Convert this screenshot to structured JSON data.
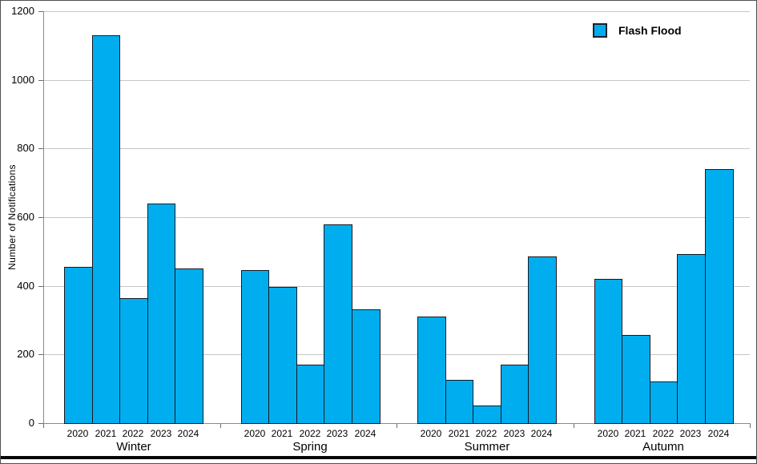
{
  "chart_data": {
    "type": "bar",
    "title": "",
    "xlabel": "",
    "ylabel": "Number of Notifications",
    "ylim": [
      0,
      1200
    ],
    "y_tick_interval": 200,
    "y_ticks": [
      0,
      200,
      400,
      600,
      800,
      1000,
      1200
    ],
    "grid": true,
    "legend_position": "top-right",
    "bar_fill_color": "#00AEEF",
    "bar_border_color": "#191921",
    "series": [
      {
        "name": "Flash Flood",
        "color": "#00AEEF"
      }
    ],
    "groups": [
      {
        "label": "Winter",
        "categories": [
          "2020",
          "2021",
          "2022",
          "2023",
          "2024"
        ],
        "values": [
          455,
          1130,
          365,
          640,
          450
        ]
      },
      {
        "label": "Spring",
        "categories": [
          "2020",
          "2021",
          "2022",
          "2023",
          "2024"
        ],
        "values": [
          445,
          398,
          170,
          578,
          332
        ]
      },
      {
        "label": "Summer",
        "categories": [
          "2020",
          "2021",
          "2022",
          "2023",
          "2024"
        ],
        "values": [
          311,
          127,
          52,
          170,
          485
        ]
      },
      {
        "label": "Autumn",
        "categories": [
          "2020",
          "2021",
          "2022",
          "2023",
          "2024"
        ],
        "values": [
          420,
          257,
          122,
          493,
          740
        ]
      }
    ]
  }
}
